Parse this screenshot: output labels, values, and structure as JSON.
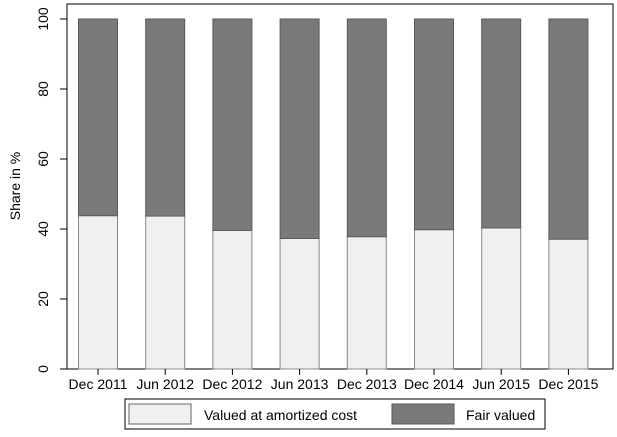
{
  "chart_data": {
    "type": "bar",
    "stacked": true,
    "categories": [
      "Dec 2011",
      "Jun 2012",
      "Dec 2012",
      "Jun 2013",
      "Dec 2013",
      "Dec 2014",
      "Jun 2015",
      "Dec 2015"
    ],
    "series": [
      {
        "name": "Valued at amortized cost",
        "values": [
          43.8,
          43.7,
          39.6,
          37.3,
          37.8,
          39.8,
          40.3,
          37.1
        ],
        "color": "#f0f0f0"
      },
      {
        "name": "Fair valued",
        "values": [
          56.2,
          56.3,
          60.4,
          62.7,
          62.2,
          60.2,
          59.7,
          62.9
        ],
        "color": "#7a7a7a"
      }
    ],
    "title": "",
    "xlabel": "",
    "ylabel": "Share in %",
    "ylim": [
      0,
      100
    ],
    "yticks": [
      0,
      20,
      40,
      60,
      80,
      100
    ],
    "grid": false,
    "legend_position": "bottom"
  }
}
